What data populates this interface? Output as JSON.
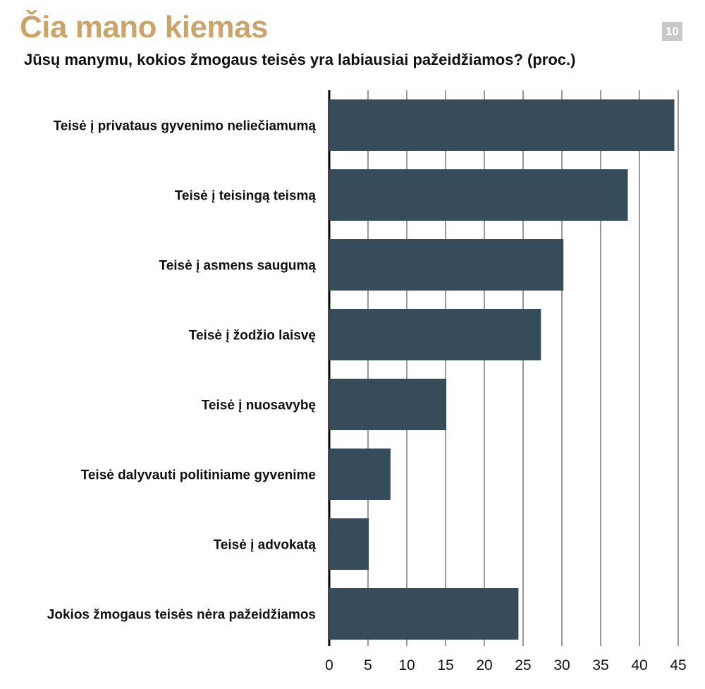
{
  "header": {
    "brand": "Čia mano kiemas",
    "page_number": "10"
  },
  "colors": {
    "brand": "#c9a56b",
    "bar": "#374c5a",
    "grid": "#333333",
    "badge": "#c8c8c8"
  },
  "chart_data": {
    "type": "bar",
    "orientation": "horizontal",
    "title": "Jūsų manymu, kokios žmogaus teisės yra labiausiai pažeidžiamos? (proc.)",
    "xlabel": "",
    "ylabel": "",
    "categories": [
      "Teisė į privataus gyvenimo neliečiamumą",
      "Teisė į teisingą teismą",
      "Teisė į asmens saugumą",
      "Teisė į žodžio laisvę",
      "Teisė į nuosavybę",
      "Teisė dalyvauti politiniame gyvenime",
      "Teisė į advokatą",
      "Jokios žmogaus teisės nėra pažeidžiamos"
    ],
    "values": [
      44.5,
      38.5,
      30.2,
      27.3,
      15.1,
      7.9,
      5.1,
      24.4
    ],
    "xlim": [
      0,
      45
    ],
    "xticks": [
      0,
      5,
      10,
      15,
      20,
      25,
      30,
      35,
      40,
      45
    ],
    "grid": true
  }
}
